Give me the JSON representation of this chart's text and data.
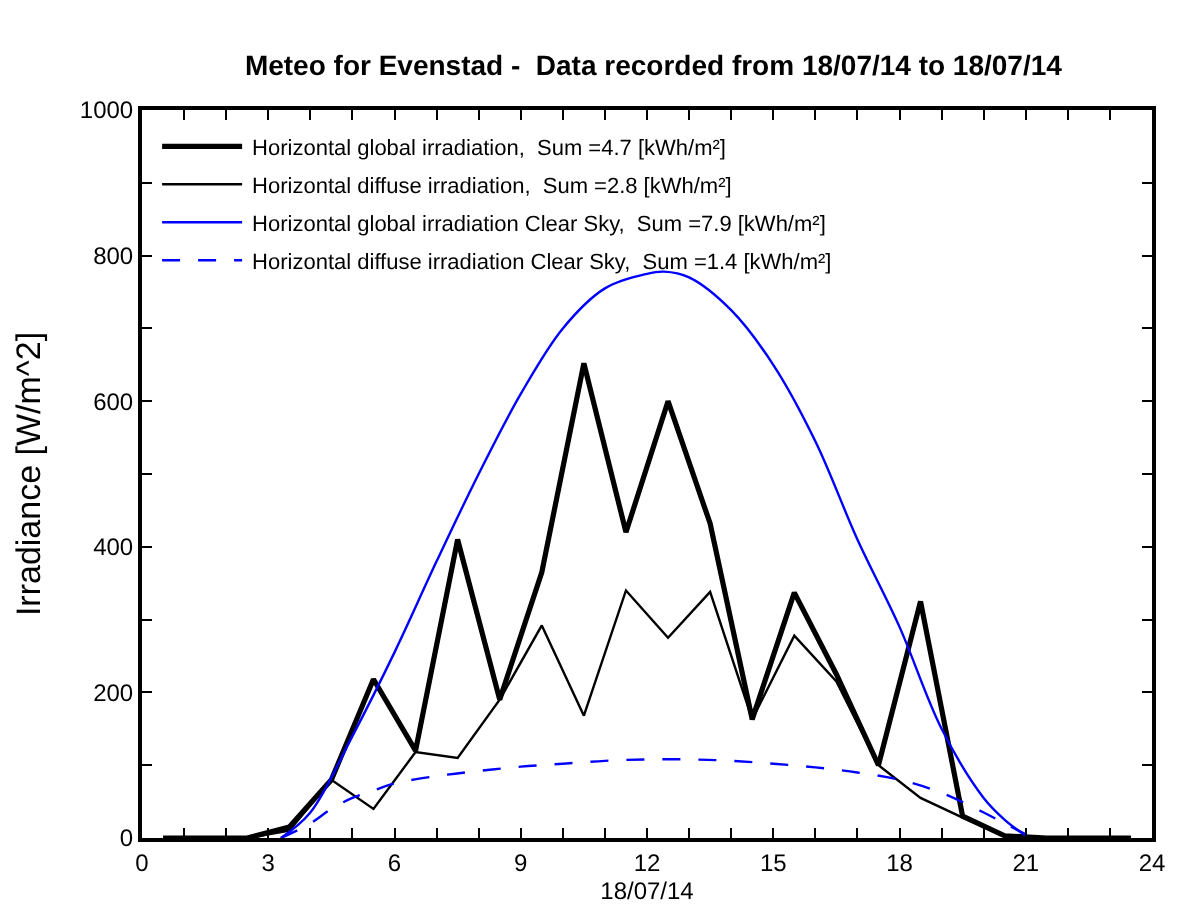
{
  "chart_data": {
    "type": "line",
    "title": "Meteo for Evenstad -  Data recorded from 18/07/14 to 18/07/14",
    "xlabel": "18/07/14",
    "ylabel": "Irradiance [W/m^2]",
    "xlim": [
      0,
      24
    ],
    "xticks": [
      0,
      {
        "value": 1,
        "label": null
      },
      {
        "value": 2,
        "label": null
      },
      3,
      {
        "value": 4,
        "label": null
      },
      {
        "value": 5,
        "label": null
      },
      6,
      {
        "value": 7,
        "label": null
      },
      {
        "value": 8,
        "label": null
      },
      9,
      {
        "value": 10,
        "label": null
      },
      {
        "value": 11,
        "label": null
      },
      12,
      {
        "value": 13,
        "label": null
      },
      {
        "value": 14,
        "label": null
      },
      15,
      {
        "value": 16,
        "label": null
      },
      {
        "value": 17,
        "label": null
      },
      18,
      {
        "value": 19,
        "label": null
      },
      {
        "value": 20,
        "label": null
      },
      21,
      {
        "value": 22,
        "label": null
      },
      {
        "value": 23,
        "label": null
      },
      24
    ],
    "ylim": [
      0,
      1000
    ],
    "yticks": [
      0,
      {
        "value": 100,
        "label": null
      },
      200,
      {
        "value": 300,
        "label": null
      },
      400,
      {
        "value": 500,
        "label": null
      },
      600,
      {
        "value": 700,
        "label": null
      },
      800,
      {
        "value": 900,
        "label": null
      },
      1000
    ],
    "legend": "top left",
    "marker": "none",
    "series": [
      {
        "name": "Horizontal global irradiation,  Sum =4.7 [kWh/m²]",
        "color": "#000000",
        "line_style": "solid",
        "x": [
          0.5,
          1.5,
          2.5,
          3.5,
          4.5,
          5.5,
          6.5,
          7.5,
          8.5,
          9.5,
          10.5,
          11.5,
          12.5,
          13.5,
          14.5,
          15.5,
          16.5,
          17.5,
          18.5,
          19.5,
          20.5,
          21.5,
          22.5,
          23.5
        ],
        "values": [
          0,
          0,
          0,
          15,
          80,
          218,
          120,
          410,
          190,
          365,
          652,
          420,
          600,
          432,
          163,
          337,
          225,
          100,
          325,
          30,
          3,
          0,
          0,
          0
        ]
      },
      {
        "name": "Horizontal diffuse irradiation,  Sum =2.8 [kWh/m²]",
        "color": "#000000",
        "line_style": "solid",
        "x": [
          0.5,
          1.5,
          2.5,
          3.5,
          4.5,
          5.5,
          6.5,
          7.5,
          8.5,
          9.5,
          10.5,
          11.5,
          12.5,
          13.5,
          14.5,
          15.5,
          16.5,
          17.5,
          18.5,
          19.5,
          20.5,
          21.5,
          22.5,
          23.5
        ],
        "values": [
          0,
          0,
          0,
          10,
          80,
          40,
          118,
          110,
          190,
          292,
          168,
          340,
          275,
          338,
          163,
          278,
          215,
          100,
          55,
          28,
          3,
          0,
          0,
          0
        ]
      },
      {
        "name": "Horizontal global irradiation Clear Sky,  Sum =7.9 [kWh/m²]",
        "color": "#0000ff",
        "line_style": "solid",
        "x": [
          3.3,
          4,
          5,
          6,
          7,
          8,
          9,
          10,
          11,
          12,
          12.4,
          13,
          14,
          15,
          16,
          17,
          18,
          19,
          20,
          20.5,
          21
        ],
        "values": [
          0,
          35,
          140,
          255,
          380,
          500,
          610,
          700,
          755,
          775,
          778,
          770,
          725,
          650,
          545,
          410,
          290,
          150,
          55,
          25,
          3
        ]
      },
      {
        "name": "Horizontal diffuse irradiation Clear Sky,  Sum =1.4 [kWh/m²]",
        "color": "#0000ff",
        "line_style": "dashed",
        "x": [
          3.3,
          4,
          4.5,
          5,
          5.5,
          6,
          7,
          8,
          9,
          10,
          11,
          12,
          13,
          14,
          15,
          16,
          17,
          18,
          19,
          20,
          20.5,
          21
        ],
        "values": [
          0,
          20,
          40,
          55,
          65,
          75,
          85,
          92,
          98,
          102,
          106,
          108,
          108,
          106,
          102,
          97,
          90,
          80,
          62,
          35,
          20,
          5
        ]
      }
    ]
  }
}
